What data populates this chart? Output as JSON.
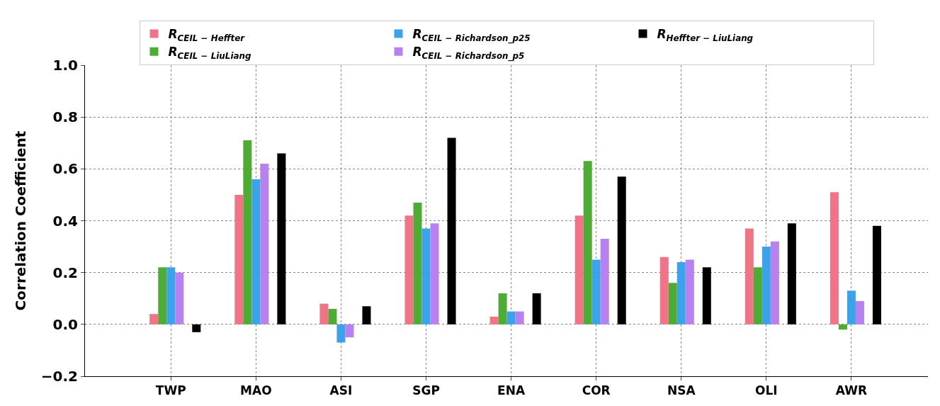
{
  "chart_data": {
    "type": "bar",
    "ylabel": "Correlation Coefficient",
    "categories": [
      "TWP",
      "MAO",
      "ASI",
      "SGP",
      "ENA",
      "COR",
      "NSA",
      "OLI",
      "AWR"
    ],
    "series": [
      {
        "name": "R$_{CEIL − Heffter}$",
        "color": "#f07386",
        "values": [
          0.04,
          0.5,
          0.08,
          0.42,
          0.03,
          0.42,
          0.26,
          0.37,
          0.51
        ]
      },
      {
        "name": "R$_{CEIL − LiuLiang}$",
        "color": "#4dac34",
        "values": [
          0.22,
          0.71,
          0.06,
          0.47,
          0.12,
          0.63,
          0.16,
          0.22,
          -0.02
        ]
      },
      {
        "name": "R$_{CEIL − Richardson_p25}$",
        "color": "#3ba3ec",
        "values": [
          0.22,
          0.56,
          -0.07,
          0.37,
          0.05,
          0.25,
          0.24,
          0.3,
          0.13
        ]
      },
      {
        "name": "R$_{CEIL − Richardson_p5}$",
        "color": "#b782f0",
        "values": [
          0.2,
          0.62,
          -0.05,
          0.39,
          0.05,
          0.33,
          0.25,
          0.32,
          0.09
        ]
      },
      {
        "name": "R$_{Heffter − LiuLiang}$",
        "color": "#000000",
        "values": [
          -0.03,
          0.66,
          0.07,
          0.72,
          0.12,
          0.57,
          0.22,
          0.39,
          0.38
        ]
      }
    ],
    "ylim": [
      -0.2,
      1.0
    ],
    "yticks": [
      {
        "value": -0.2,
        "label": "−0.2"
      },
      {
        "value": 0,
        "label": "0.0"
      },
      {
        "value": 0.2,
        "label": "0.2"
      },
      {
        "value": 0.4,
        "label": "0.4"
      },
      {
        "value": 0.6,
        "label": "0.6"
      },
      {
        "value": 0.8,
        "label": "0.8"
      },
      {
        "value": 1.0,
        "label": "1.0"
      }
    ],
    "grid": true,
    "legend": "top"
  }
}
